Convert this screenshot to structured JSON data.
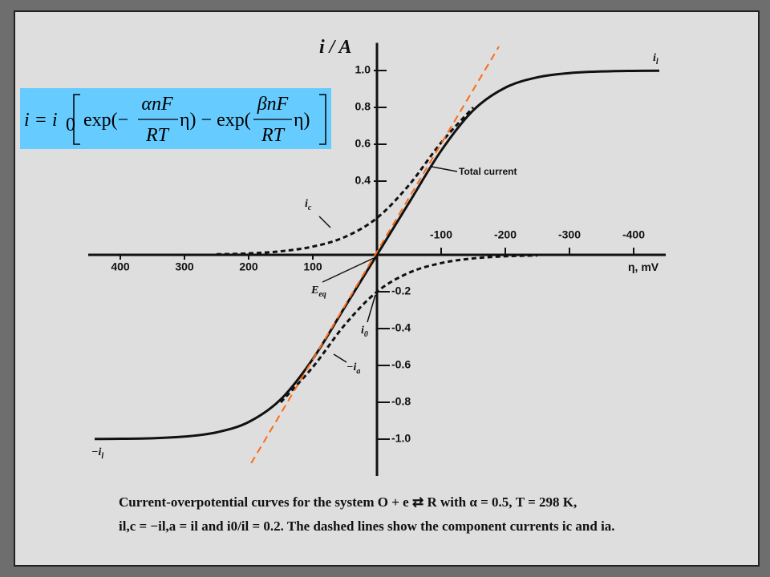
{
  "equation": {
    "lhs": "i = i",
    "lhs_sub": "0",
    "open1": "exp(−",
    "num1": "αnF",
    "den1": "RT",
    "mid": "η) − exp(",
    "num2": "βnF",
    "den2": "RT",
    "close": "η)"
  },
  "chart_data": {
    "type": "line",
    "y_label": "i / A",
    "x_label": "η, mV",
    "annotations": {
      "il_top": {
        "text": "i",
        "sub": "l"
      },
      "il_bottom": {
        "text": "−i",
        "sub": "l"
      },
      "ic": {
        "text": "i",
        "sub": "c"
      },
      "total": "Total current",
      "eeq": {
        "text": "E",
        "sub": "eq"
      },
      "i0": {
        "text": "i",
        "sub": "0"
      },
      "ia": {
        "text": "−i",
        "sub": "a"
      }
    },
    "x": [
      440,
      400,
      350,
      300,
      250,
      200,
      150,
      100,
      50,
      0,
      -50,
      -100,
      -150,
      -200,
      -250,
      -300,
      -350,
      -400,
      -440
    ],
    "series": [
      {
        "color": "#111111",
        "dashed": false,
        "values": [
          -0.999,
          -0.998,
          -0.995,
          -0.986,
          -0.963,
          -0.907,
          -0.784,
          -0.565,
          -0.283,
          0,
          0.283,
          0.565,
          0.784,
          0.907,
          0.963,
          0.986,
          0.995,
          0.998,
          0.999
        ]
      },
      {
        "color": "#111111",
        "dashed": true,
        "values": [
          null,
          null,
          null,
          null,
          0.003,
          0.0078,
          0.0193,
          0.0447,
          0.097,
          0.2,
          0.379,
          0.609,
          0.8,
          null,
          null,
          null,
          null,
          null,
          null
        ]
      },
      {
        "color": "#111111",
        "dashed": true,
        "values": [
          null,
          null,
          null,
          null,
          null,
          null,
          -0.8,
          -0.609,
          -0.379,
          -0.2,
          -0.097,
          -0.0447,
          -0.0193,
          -0.0078,
          -0.003,
          null,
          null,
          null,
          null
        ]
      },
      {
        "color": "#ff6a13",
        "dashed": true,
        "x": [
          196,
          -190
        ],
        "values": [
          -1.13,
          1.13
        ]
      }
    ],
    "xlim": [
      450,
      -450
    ],
    "ylim": [
      -1.2,
      1.15
    ],
    "xticks": [
      400,
      300,
      200,
      100,
      -100,
      -200,
      -300,
      -400
    ],
    "yticks": [
      {
        "value": 1,
        "label": "1.0"
      },
      0.8,
      0.6,
      0.4,
      -0.2,
      -0.4,
      -0.6,
      -0.8,
      {
        "value": -1,
        "label": "-1.0"
      }
    ]
  },
  "caption": [
    "Current-overpotential curves for the system O + e ⇄ R with α = 0.5, T = 298 K,",
    "il,c = −il,a = il and i0/il = 0.2. The dashed lines show the component currents ic and ia."
  ]
}
